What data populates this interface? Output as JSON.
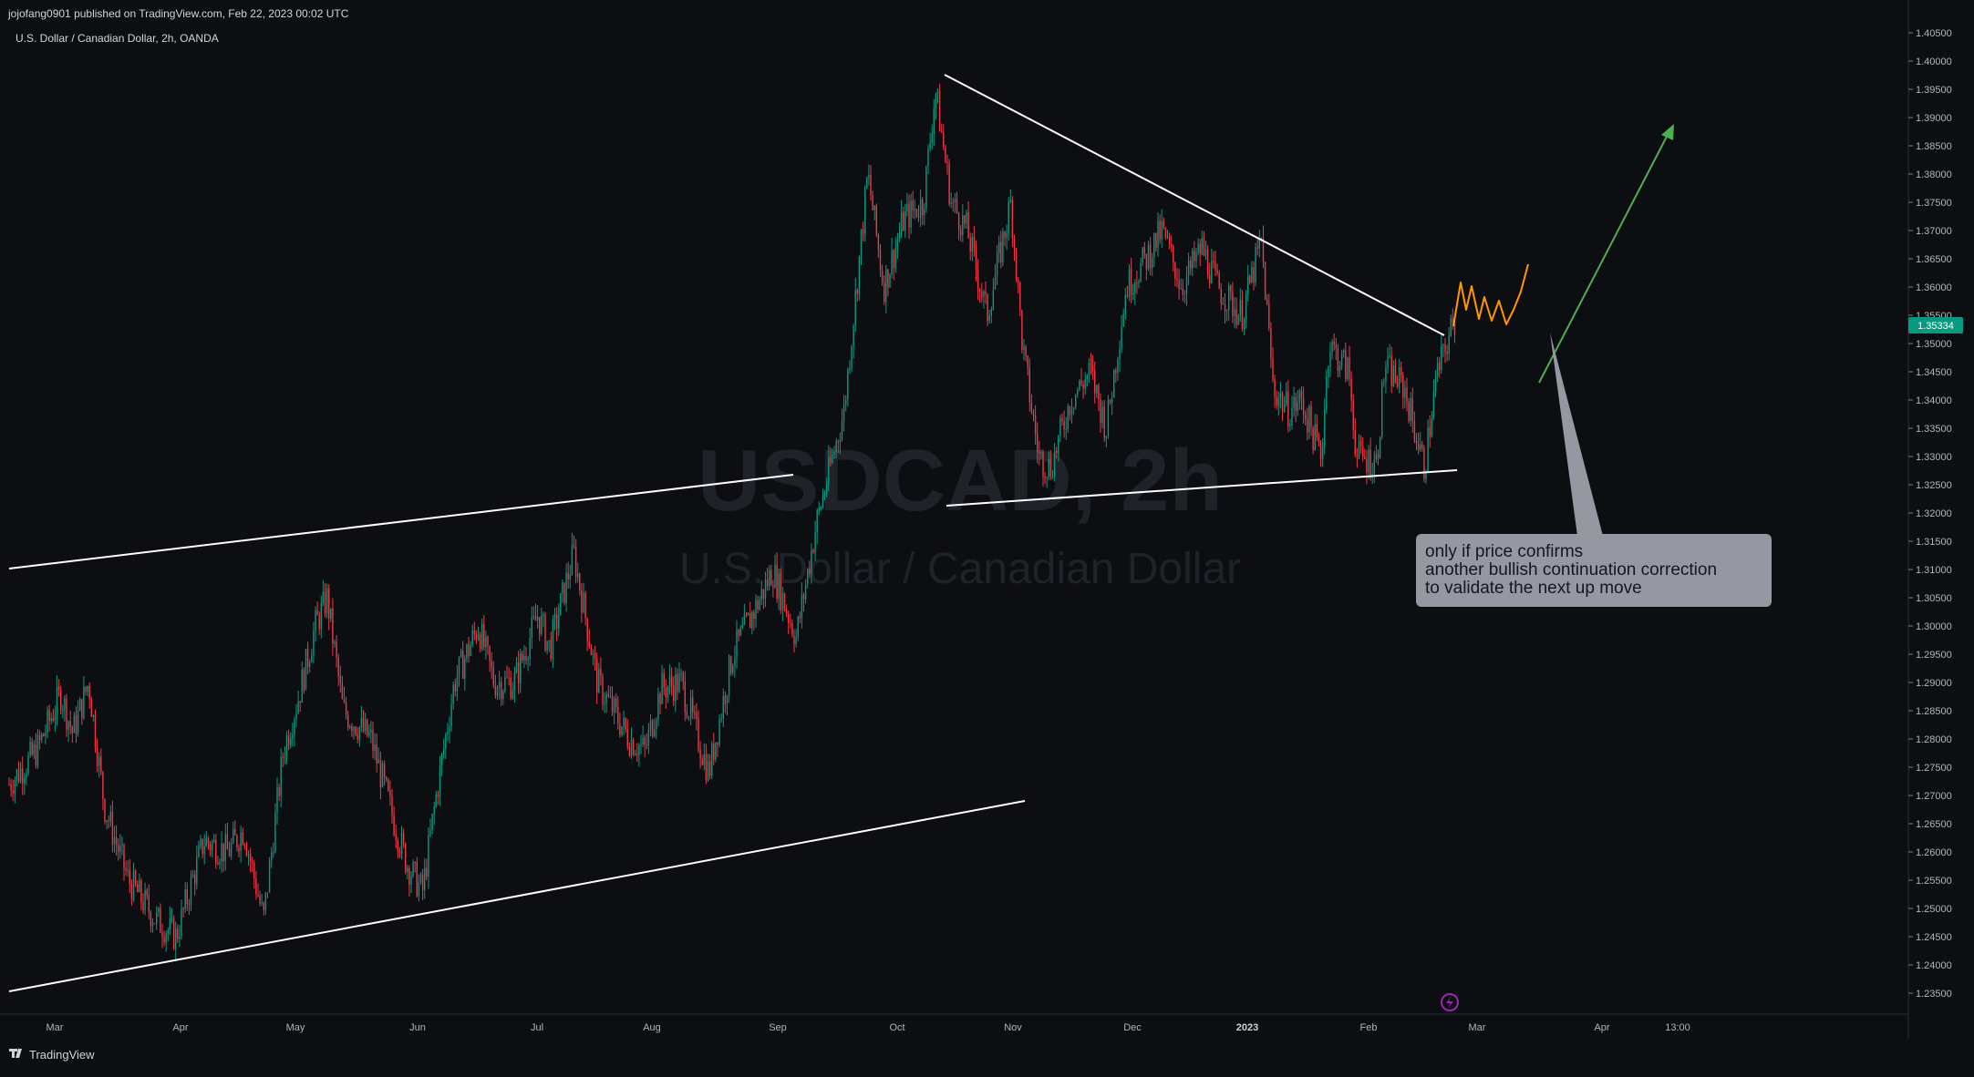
{
  "header": {
    "published": "jojofang0901 published on TradingView.com, Feb 22, 2023 00:02 UTC",
    "symbol_line": "U.S. Dollar / Canadian Dollar, 2h, OANDA"
  },
  "watermark": {
    "symbol": "USDCAD, 2h",
    "name": "U.S. Dollar / Canadian Dollar"
  },
  "annotation": {
    "lines": [
      "only if price confirms",
      "another bullish continuation correction",
      "to validate the next up move"
    ]
  },
  "price_badge": {
    "value": "1.35334",
    "color": "#089981"
  },
  "footer": {
    "brand": "TradingView",
    "logo_icon": "tradingview-logo-icon"
  },
  "colors": {
    "background": "#0d0e12",
    "up": "#089981",
    "down": "#f23645",
    "trendline": "#ffffff",
    "orange_path": "#ff9800",
    "green_arrow": "#4caf50",
    "callout_bg": "#9598a1"
  },
  "chart_data": {
    "type": "candlestick",
    "symbol": "USDCAD",
    "interval": "2h",
    "source": "OANDA",
    "y_ticks": [
      1.405,
      1.4,
      1.395,
      1.39,
      1.385,
      1.38,
      1.375,
      1.37,
      1.365,
      1.36,
      1.355,
      1.35,
      1.345,
      1.34,
      1.335,
      1.33,
      1.325,
      1.32,
      1.315,
      1.31,
      1.305,
      1.3,
      1.295,
      1.29,
      1.285,
      1.28,
      1.275,
      1.27,
      1.265,
      1.26,
      1.255,
      1.25,
      1.245,
      1.24,
      1.235
    ],
    "y_tick_labels": [
      "1.40500",
      "1.40000",
      "1.39500",
      "1.39000",
      "1.38500",
      "1.38000",
      "1.37500",
      "1.37000",
      "1.36500",
      "1.36000",
      "1.35500",
      "1.35000",
      "1.34500",
      "1.34000",
      "1.33500",
      "1.33000",
      "1.32500",
      "1.32000",
      "1.31500",
      "1.31000",
      "1.30500",
      "1.30000",
      "1.29500",
      "1.29000",
      "1.28500",
      "1.28000",
      "1.27500",
      "1.27000",
      "1.26500",
      "1.26000",
      "1.25500",
      "1.25000",
      "1.24500",
      "1.24000",
      "1.23500"
    ],
    "ylim": [
      1.2325,
      1.4075
    ],
    "x_tick_labels": [
      "Mar",
      "Apr",
      "May",
      "Jun",
      "Jul",
      "Aug",
      "Sep",
      "Oct",
      "Nov",
      "Dec",
      "2023",
      "Feb",
      "Mar",
      "Apr",
      "13:00"
    ],
    "last_price": 1.35334,
    "price_path": [
      [
        "Feb 22, 2022",
        1.272
      ],
      [
        "Mar 1",
        1.278
      ],
      [
        "Mar 7",
        1.288
      ],
      [
        "Mar 10",
        1.281
      ],
      [
        "Mar 14",
        1.29
      ],
      [
        "Mar 18",
        1.268
      ],
      [
        "Mar 24",
        1.255
      ],
      [
        "Mar 31",
        1.248
      ],
      [
        "Apr 5",
        1.245
      ],
      [
        "Apr 12",
        1.262
      ],
      [
        "Apr 18",
        1.26
      ],
      [
        "Apr 22",
        1.264
      ],
      [
        "Apr 27",
        1.248
      ],
      [
        "May 2",
        1.278
      ],
      [
        "May 6",
        1.288
      ],
      [
        "May 10",
        1.3
      ],
      [
        "May 13",
        1.305
      ],
      [
        "May 17",
        1.285
      ],
      [
        "May 24",
        1.28
      ],
      [
        "May 30",
        1.265
      ],
      [
        "Jun 2",
        1.258
      ],
      [
        "Jun 6",
        1.253
      ],
      [
        "Jun 9",
        1.268
      ],
      [
        "Jun 14",
        1.29
      ],
      [
        "Jun 20",
        1.3
      ],
      [
        "Jun 24",
        1.29
      ],
      [
        "Jun 29",
        1.29
      ],
      [
        "Jul 5",
        1.302
      ],
      [
        "Jul 8",
        1.296
      ],
      [
        "Jul 14",
        1.313
      ],
      [
        "Jul 20",
        1.29
      ],
      [
        "Jul 28",
        1.28
      ],
      [
        "Aug 1",
        1.278
      ],
      [
        "Aug 5",
        1.289
      ],
      [
        "Aug 10",
        1.29
      ],
      [
        "Aug 17",
        1.274
      ],
      [
        "Aug 23",
        1.295
      ],
      [
        "Aug 30",
        1.305
      ],
      [
        "Sep 2",
        1.31
      ],
      [
        "Sep 8",
        1.298
      ],
      [
        "Sep 13",
        1.318
      ],
      [
        "Sep 20",
        1.338
      ],
      [
        "Sep 26",
        1.38
      ],
      [
        "Sep 30",
        1.36
      ],
      [
        "Oct 5",
        1.372
      ],
      [
        "Oct 10",
        1.375
      ],
      [
        "Oct 13",
        1.395
      ],
      [
        "Oct 17",
        1.375
      ],
      [
        "Oct 21",
        1.37
      ],
      [
        "Oct 26",
        1.355
      ],
      [
        "Nov 1",
        1.375
      ],
      [
        "Nov 4",
        1.349
      ],
      [
        "Nov 8",
        1.33
      ],
      [
        "Nov 11",
        1.328
      ],
      [
        "Nov 16",
        1.34
      ],
      [
        "Nov 21",
        1.345
      ],
      [
        "Nov 25",
        1.335
      ],
      [
        "Nov 30",
        1.36
      ],
      [
        "Dec 5",
        1.365
      ],
      [
        "Dec 9",
        1.37
      ],
      [
        "Dec 14",
        1.36
      ],
      [
        "Dec 19",
        1.367
      ],
      [
        "Dec 23",
        1.36
      ],
      [
        "Dec 29",
        1.355
      ],
      [
        "Jan 3",
        1.368
      ],
      [
        "Jan 6",
        1.342
      ],
      [
        "Jan 10",
        1.338
      ],
      [
        "Jan 13",
        1.34
      ],
      [
        "Jan 18",
        1.33
      ],
      [
        "Jan 20",
        1.35
      ],
      [
        "Jan 25",
        1.345
      ],
      [
        "Jan 27",
        1.33
      ],
      [
        "Feb 1",
        1.329
      ],
      [
        "Feb 3",
        1.346
      ],
      [
        "Feb 8",
        1.342
      ],
      [
        "Feb 13",
        1.328
      ],
      [
        "Feb 16",
        1.344
      ],
      [
        "Feb 20",
        1.353
      ],
      [
        "Feb 21",
        1.35334
      ]
    ]
  }
}
